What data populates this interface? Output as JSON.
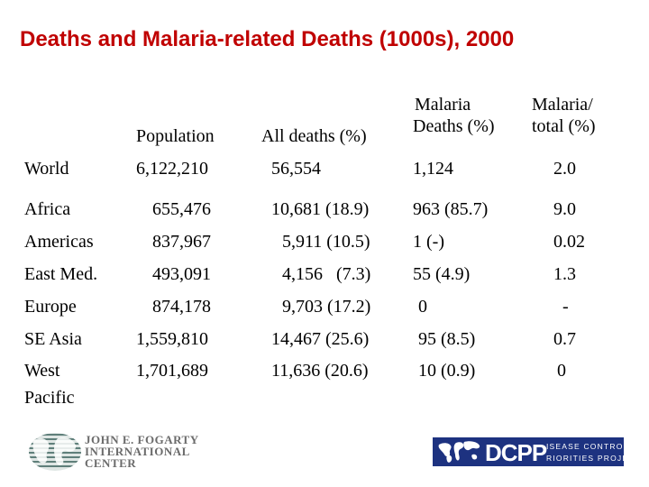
{
  "title": "Deaths and Malaria-related Deaths (1000s), 2000",
  "headers": {
    "population": "Population",
    "all_deaths": "All deaths (%)",
    "malaria_deaths_line1": "Malaria",
    "malaria_deaths_line2": "Deaths (%)",
    "malaria_total_line1": "Malaria/",
    "malaria_total_line2": "total (%)"
  },
  "rows": [
    {
      "region": "World",
      "region2": "",
      "population": "6,122,210",
      "all_deaths": "56,554",
      "malaria_deaths": "1,124",
      "malaria_total": "2.0"
    },
    {
      "region": "Africa",
      "region2": "",
      "population": "655,476",
      "all_deaths": "10,681 (18.9)",
      "malaria_deaths": "963 (85.7)",
      "malaria_total": "9.0"
    },
    {
      "region": "Americas",
      "region2": "",
      "population": "837,967",
      "all_deaths": "5,911 (10.5)",
      "malaria_deaths": "1 (-)",
      "malaria_total": "0.02"
    },
    {
      "region": "East Med.",
      "region2": "",
      "population": "493,091",
      "all_deaths": "4,156   (7.3)",
      "malaria_deaths": "55 (4.9)",
      "malaria_total": "1.3"
    },
    {
      "region": "Europe",
      "region2": "",
      "population": "874,178",
      "all_deaths": "9,703 (17.2)",
      "malaria_deaths": "0",
      "malaria_total": "-"
    },
    {
      "region": "SE Asia",
      "region2": "",
      "population": "1,559,810",
      "all_deaths": "14,467 (25.6)",
      "malaria_deaths": "95 (8.5)",
      "malaria_total": "0.7"
    },
    {
      "region": "West",
      "region2": "Pacific",
      "population": "1,701,689",
      "all_deaths": "11,636 (20.6)",
      "malaria_deaths": "10 (0.9)",
      "malaria_total": "0"
    }
  ],
  "logos": {
    "fogarty_line1": "JOHN E. FOGARTY",
    "fogarty_line2": "INTERNATIONAL",
    "fogarty_line3": "CENTER",
    "dcpp_name": "DCPP",
    "dcpp_sub1": "ISEASE CONTROL",
    "dcpp_sub2": "RIORITIES PROJECT"
  },
  "colors": {
    "title": "#c00000",
    "dcpp_background": "#1d3280"
  }
}
